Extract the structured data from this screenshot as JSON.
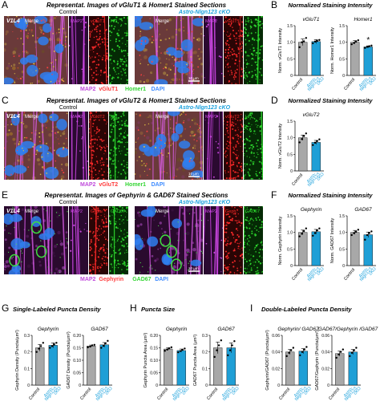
{
  "panels": [
    {
      "letter": "A",
      "title": "Representat. Images of vGluT1 & Homer1 Stained Sections",
      "group_left": "Control",
      "group_right": "Astro-Nlgn123 cKO",
      "region": "V1L4",
      "merge_label": "Merge",
      "channels": [
        "MAP2",
        "vGluT1",
        "Hr1"
      ],
      "legend": [
        {
          "text": "MAP2",
          "color": "#c04bdc"
        },
        {
          "text": "vGluT1",
          "color": "#ff3c3c"
        },
        {
          "text": "Homer1",
          "color": "#35d635"
        },
        {
          "text": "DAPI",
          "color": "#3f8cff"
        }
      ],
      "scale_bar": "10 µm"
    },
    {
      "letter": "C",
      "title": "Representat. Images of vGluT2 & Homer1 Stained Sections",
      "group_left": "Control",
      "group_right": "Astro-Nlgn123 cKO",
      "region": "V1L4",
      "merge_label": "Merge",
      "channels": [
        "MAP2",
        "vGluT2",
        "Hr1"
      ],
      "legend": [
        {
          "text": "MAP2",
          "color": "#c04bdc"
        },
        {
          "text": "vGluT2",
          "color": "#ff3c3c"
        },
        {
          "text": "Homer1",
          "color": "#35d635"
        },
        {
          "text": "DAPI",
          "color": "#3f8cff"
        }
      ],
      "scale_bar": "10 µm"
    },
    {
      "letter": "E",
      "title": "Representat. Images of Gephyrin & GAD67 Stained Sections",
      "group_left": "Control",
      "group_right": "Astro-Nlgn123 cKO",
      "region": "V1L4",
      "merge_label": "Merge",
      "channels": [
        "MAP2",
        "Geph.",
        "GAD67"
      ],
      "legend": [
        {
          "text": "MAP2",
          "color": "#c04bdc"
        },
        {
          "text": "Gephyrin",
          "color": "#ff3c3c"
        },
        {
          "text": "GAD67",
          "color": "#35d635"
        },
        {
          "text": "DAPI",
          "color": "#3f8cff"
        }
      ],
      "scale_bar": "10 µm"
    }
  ],
  "quant_titles": {
    "B": "Normalized Staining Intensity",
    "D": "Normalized Staining Intensity",
    "F": "Normalized Staining Intensity",
    "G": "Single-Labeled Puncta Density",
    "H": "Puncta Size",
    "I": "Double-Labeled Puncta Density"
  },
  "x_labels": {
    "control": "Control",
    "cko": [
      "Astro-",
      "Nlgn123",
      "cKO"
    ]
  },
  "colors": {
    "control_bar": "#a8a8a8",
    "cko_bar": "#1f9fd6",
    "title_blue": "#1ba1dc"
  },
  "chart_data": [
    {
      "panel": "B",
      "type": "bar",
      "title": "vGluT1",
      "ylabel": "Norm. vGluT1 Intensity",
      "ylim": [
        0,
        1.5
      ],
      "yticks": [
        "0",
        "0.5",
        "1.0",
        "1.5"
      ],
      "categories": [
        "Control",
        "Astro-Nlgn123 cKO"
      ],
      "values": [
        1.0,
        1.02
      ],
      "errors": [
        0.1,
        0.06
      ],
      "points": [
        [
          0.85,
          1.0,
          1.03,
          1.13
        ],
        [
          0.97,
          1.02,
          1.04,
          1.07
        ]
      ],
      "sig": ""
    },
    {
      "panel": "B",
      "type": "bar",
      "title": "Homer1",
      "ylabel": "Norm. Homer1 Intensity",
      "ylim": [
        0,
        1.5
      ],
      "yticks": [
        "0",
        "0.5",
        "1.0",
        "1.5"
      ],
      "categories": [
        "Control",
        "Astro-Nlgn123 cKO"
      ],
      "values": [
        1.0,
        0.86
      ],
      "errors": [
        0.05,
        0.03
      ],
      "points": [
        [
          0.94,
          0.98,
          1.02,
          1.06
        ],
        [
          0.83,
          0.86,
          0.88,
          0.9
        ]
      ],
      "sig": "*"
    },
    {
      "panel": "D",
      "type": "bar",
      "title": "vGluT2",
      "ylabel": "Norm. vGluT2 Intensity",
      "ylim": [
        0,
        1.5
      ],
      "yticks": [
        "0",
        "0.5",
        "1.0",
        "1.5"
      ],
      "categories": [
        "Control",
        "Astro-Nlgn123 cKO"
      ],
      "values": [
        1.0,
        0.86
      ],
      "errors": [
        0.08,
        0.06
      ],
      "points": [
        [
          0.86,
          0.96,
          1.05,
          1.13
        ],
        [
          0.78,
          0.85,
          0.9,
          0.95
        ]
      ],
      "sig": ""
    },
    {
      "panel": "F",
      "type": "bar",
      "title": "Gephyrin",
      "ylabel": "Norm. Gephyrin Intensity",
      "ylim": [
        0,
        1.5
      ],
      "yticks": [
        "0",
        "0.5",
        "1.0",
        "1.5"
      ],
      "categories": [
        "Control",
        "Astro-Nlgn123 cKO"
      ],
      "values": [
        1.0,
        1.02
      ],
      "errors": [
        0.07,
        0.07
      ],
      "points": [
        [
          0.88,
          0.96,
          1.04,
          1.12
        ],
        [
          0.9,
          0.98,
          1.06,
          1.12
        ]
      ],
      "sig": ""
    },
    {
      "panel": "F",
      "type": "bar",
      "title": "GAD67",
      "ylabel": "Norm. GAD67 Intensity",
      "ylim": [
        0,
        1.5
      ],
      "yticks": [
        "0",
        "0.5",
        "1.0",
        "1.5"
      ],
      "categories": [
        "Control",
        "Astro-Nlgn123 cKO"
      ],
      "values": [
        1.0,
        0.93
      ],
      "errors": [
        0.06,
        0.08
      ],
      "points": [
        [
          0.92,
          0.98,
          1.02,
          1.08
        ],
        [
          0.78,
          0.92,
          0.98,
          1.03
        ]
      ],
      "sig": ""
    },
    {
      "panel": "G",
      "type": "bar",
      "title": "Gephyrin",
      "ylabel": "Gephyrin Density (Puncta/µm²)",
      "ylim": [
        0,
        0.3
      ],
      "yticks": [
        "0",
        "0.1",
        "0.2",
        "0.3"
      ],
      "categories": [
        "Control",
        "Astro-Nlgn123 cKO"
      ],
      "values": [
        0.225,
        0.24
      ],
      "errors": [
        0.02,
        0.015
      ],
      "points": [
        [
          0.2,
          0.22,
          0.235,
          0.255
        ],
        [
          0.225,
          0.235,
          0.245,
          0.255
        ]
      ],
      "sig": ""
    },
    {
      "panel": "G",
      "type": "bar",
      "title": "GAD67",
      "ylabel": "GAD67 Density (Puncta/µm²)",
      "ylim": [
        0,
        0.2
      ],
      "yticks": [
        "0",
        "0.05",
        "0.10",
        "0.15",
        "0.20"
      ],
      "categories": [
        "Control",
        "Astro-Nlgn123 cKO"
      ],
      "values": [
        0.157,
        0.162
      ],
      "errors": [
        0.004,
        0.009
      ],
      "points": [
        [
          0.152,
          0.155,
          0.16,
          0.162
        ],
        [
          0.15,
          0.158,
          0.168,
          0.178
        ]
      ],
      "sig": ""
    },
    {
      "panel": "H",
      "type": "bar",
      "title": "Gephyrin",
      "ylabel": "Gephyrin Puncta Area (µm²)",
      "ylim": [
        0,
        0.2
      ],
      "yticks": [
        "0",
        "0.05",
        "0.10",
        "0.15",
        "0.20"
      ],
      "categories": [
        "Control",
        "Astro-Nlgn123 cKO"
      ],
      "values": [
        0.145,
        0.139
      ],
      "errors": [
        0.005,
        0.006
      ],
      "points": [
        [
          0.138,
          0.143,
          0.148,
          0.152
        ],
        [
          0.132,
          0.137,
          0.142,
          0.147
        ]
      ],
      "sig": ""
    },
    {
      "panel": "H",
      "type": "bar",
      "title": "GAD67",
      "ylabel": "GAD67 Puncta Area (µm²)",
      "ylim": [
        0,
        0.3
      ],
      "yticks": [
        "0",
        "0.1",
        "0.2",
        "0.3"
      ],
      "categories": [
        "Control",
        "Astro-Nlgn123 cKO"
      ],
      "values": [
        0.225,
        0.225
      ],
      "errors": [
        0.035,
        0.03
      ],
      "points": [
        [
          0.17,
          0.21,
          0.24,
          0.27
        ],
        [
          0.18,
          0.21,
          0.24,
          0.265
        ]
      ],
      "sig": ""
    },
    {
      "panel": "I",
      "type": "bar",
      "title": "Gephyrin/ GAD67",
      "ylabel": "Gephyrin/GAD67 (Puncta/µm²)",
      "ylim": [
        0,
        0.06
      ],
      "yticks": [
        "0",
        "0.02",
        "0.04",
        "0.06"
      ],
      "categories": [
        "Control",
        "Astro-Nlgn123 cKO"
      ],
      "values": [
        0.04,
        0.041
      ],
      "errors": [
        0.003,
        0.003
      ],
      "points": [
        [
          0.035,
          0.039,
          0.042,
          0.045
        ],
        [
          0.036,
          0.04,
          0.043,
          0.046
        ]
      ],
      "sig": ""
    },
    {
      "panel": "I",
      "type": "bar",
      "title": "GAD67/Gephyrin /GAD67",
      "ylabel": "GAD67/Gephyrin (Puncta/µm²)",
      "ylim": [
        0,
        0.06
      ],
      "yticks": [
        "0",
        "0.02",
        "0.04",
        "0.06"
      ],
      "categories": [
        "Control",
        "Astro-Nlgn123 cKO"
      ],
      "values": [
        0.038,
        0.04
      ],
      "errors": [
        0.003,
        0.003
      ],
      "points": [
        [
          0.033,
          0.037,
          0.04,
          0.043
        ],
        [
          0.035,
          0.039,
          0.042,
          0.045
        ]
      ],
      "sig": ""
    }
  ]
}
